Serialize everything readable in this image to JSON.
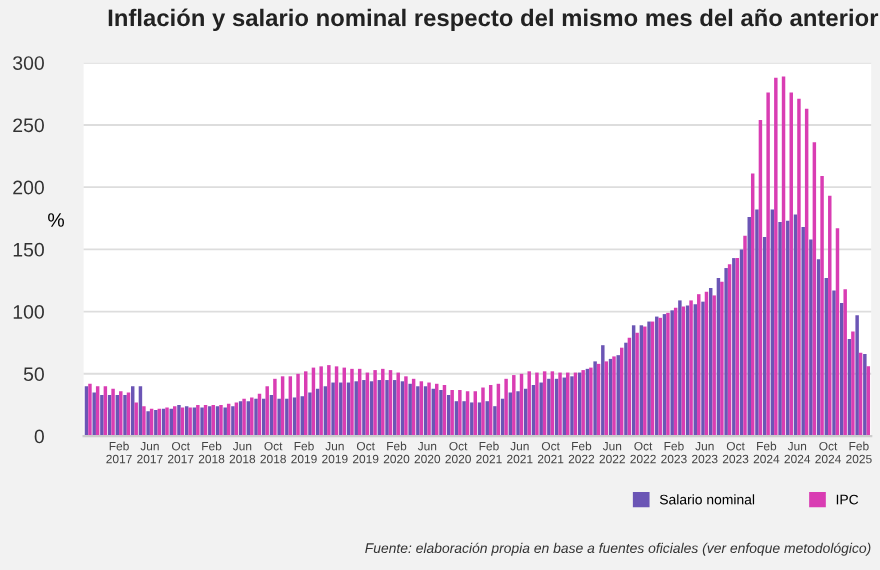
{
  "chart_data": {
    "type": "bar",
    "title": "Inflación y salario nominal respecto del mismo mes del año anterior",
    "ylabel": "%",
    "categories": [
      null,
      null,
      null,
      null,
      "Feb 2017",
      null,
      null,
      null,
      "Jun 2017",
      null,
      null,
      null,
      "Oct 2017",
      null,
      null,
      null,
      "Feb 2018",
      null,
      null,
      null,
      "Jun 2018",
      null,
      null,
      null,
      "Oct 2018",
      null,
      null,
      null,
      "Feb 2019",
      null,
      null,
      null,
      "Jun 2019",
      null,
      null,
      null,
      "Oct 2019",
      null,
      null,
      null,
      "Feb 2020",
      null,
      null,
      null,
      "Jun 2020",
      null,
      null,
      null,
      "Oct 2020",
      null,
      null,
      null,
      "Feb 2021",
      null,
      null,
      null,
      "Jun 2021",
      null,
      null,
      null,
      "Oct 2021",
      null,
      null,
      null,
      "Feb 2022",
      null,
      null,
      null,
      "Jun 2022",
      null,
      null,
      null,
      "Oct 2022",
      null,
      null,
      null,
      "Feb 2023",
      null,
      null,
      null,
      "Jun 2023",
      null,
      null,
      null,
      "Oct 2023",
      null,
      null,
      null,
      "Feb 2024",
      null,
      null,
      null,
      "Jun 2024",
      null,
      null,
      null,
      "Oct 2024",
      null,
      null,
      null,
      "Feb 2025",
      null
    ],
    "series": [
      {
        "name": "Salario nominal",
        "color": "#6b55b5",
        "values": [
          40,
          35,
          33,
          33,
          33,
          33,
          40,
          40,
          20,
          21,
          22,
          22,
          25,
          24,
          23,
          23,
          24,
          24,
          23,
          24,
          28,
          28,
          30,
          30,
          33,
          30,
          30,
          31,
          32,
          35,
          38,
          40,
          43,
          43,
          43,
          44,
          45,
          44,
          45,
          45,
          45,
          44,
          42,
          40,
          40,
          38,
          37,
          33,
          28,
          28,
          27,
          27,
          28,
          24,
          30,
          35,
          36,
          38,
          41,
          43,
          46,
          46,
          47,
          48,
          51,
          54,
          60,
          73,
          62,
          65,
          75,
          89,
          89,
          92,
          96,
          98,
          101,
          109,
          105,
          106,
          108,
          119,
          127,
          135,
          143,
          150,
          176,
          182,
          160,
          182,
          172,
          173,
          178,
          168,
          158,
          142,
          127,
          117,
          107,
          78,
          97,
          66
        ]
      },
      {
        "name": "IPC",
        "color": "#d93db3",
        "values": [
          42,
          40,
          40,
          38,
          36,
          35,
          27,
          24,
          22,
          22,
          23,
          24,
          23,
          23,
          25,
          25,
          25,
          25,
          26,
          27,
          30,
          31,
          34,
          40,
          46,
          48,
          48,
          50,
          52,
          55,
          56,
          57,
          56,
          55,
          54,
          54,
          51,
          53,
          54,
          53,
          51,
          48,
          46,
          44,
          43,
          42,
          41,
          37,
          37,
          36,
          36,
          39,
          41,
          42,
          46,
          49,
          50,
          52,
          51,
          52,
          52,
          51,
          51,
          51,
          53,
          55,
          58,
          60,
          64,
          71,
          79,
          83,
          88,
          92,
          95,
          99,
          103,
          104,
          109,
          114,
          116,
          113,
          124,
          138,
          143,
          161,
          211,
          254,
          276,
          288,
          289,
          276,
          271,
          263,
          236,
          209,
          193,
          167,
          118,
          84,
          67,
          56
        ]
      }
    ],
    "ylim": [
      0,
      300
    ],
    "yticks": [
      0,
      50,
      100,
      150,
      200,
      250,
      300
    ],
    "grid": "y",
    "legend": "bottom right",
    "annotations": [
      "Fuente: elaboración propia en base a fuentes oficiales (ver enfoque metodológico)"
    ]
  }
}
